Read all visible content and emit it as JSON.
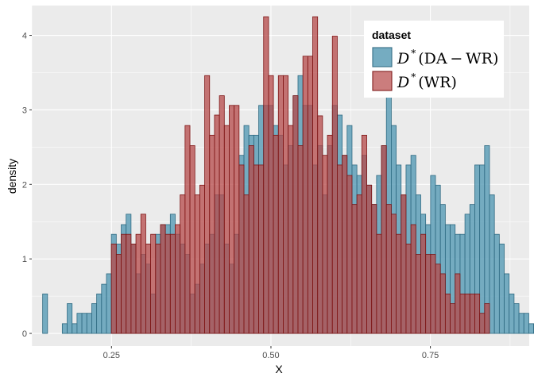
{
  "chart_data": {
    "type": "histogram",
    "xlabel": "X",
    "ylabel": "density",
    "xlim": [
      0.125,
      0.905
    ],
    "ylim": [
      -0.17,
      4.4
    ],
    "x_ticks": [
      0.25,
      0.5,
      0.75
    ],
    "x_tick_labels": [
      "0.25",
      "0.50",
      "0.75"
    ],
    "y_ticks": [
      0,
      1,
      2,
      3,
      4
    ],
    "y_tick_labels": [
      "0",
      "1",
      "2",
      "3",
      "4"
    ],
    "x_minor_ticks": [
      0.125,
      0.375,
      0.625,
      0.875
    ],
    "y_minor_ticks": [
      0.5,
      1.5,
      2.5,
      3.5
    ],
    "bin_start": 0.142,
    "bin_width": 0.0077,
    "legend": {
      "title": "dataset",
      "position": "top-right",
      "entries": [
        {
          "prefix": "D",
          "superscript": "*",
          "text": "(DA − WR)",
          "fill": "#5fa0b9",
          "stroke": "#2f6a82"
        },
        {
          "prefix": "D",
          "superscript": "*",
          "text": "(WR)",
          "fill": "#bd5656",
          "stroke": "#7d1414"
        }
      ]
    },
    "series": [
      {
        "name": "D*(DA - WR)",
        "fill": "#5fa0b9",
        "fill_opacity": 0.85,
        "stroke": "#2f6a82",
        "values": [
          0.53,
          0,
          0,
          0,
          0.13,
          0.4,
          0.13,
          0.27,
          0.27,
          0.27,
          0.4,
          0.53,
          0.66,
          0.8,
          1.33,
          1.2,
          1.46,
          1.6,
          1.2,
          0.8,
          1.06,
          0.93,
          0.53,
          1.33,
          1.46,
          1.46,
          1.6,
          1.33,
          1.2,
          1.06,
          0.53,
          0.66,
          0.93,
          1.2,
          1.33,
          1.86,
          1.86,
          1.2,
          0.93,
          1.33,
          2.39,
          2.79,
          2.66,
          2.66,
          3.06,
          3.06,
          3.06,
          2.79,
          2.66,
          2.26,
          2.52,
          3.19,
          3.46,
          3.06,
          3.06,
          2.26,
          2.52,
          1.86,
          2.52,
          3.06,
          2.93,
          2.39,
          2.79,
          2.26,
          2.12,
          2.39,
          1.99,
          1.73,
          2.12,
          2.52,
          3.19,
          2.79,
          2.26,
          1.86,
          2.26,
          2.39,
          1.86,
          1.6,
          1.46,
          2.12,
          1.99,
          1.73,
          1.46,
          1.46,
          1.33,
          1.33,
          1.6,
          1.73,
          2.26,
          2.26,
          2.52,
          1.86,
          1.33,
          1.2,
          0.8,
          0.53,
          0.4,
          0.27,
          0.27,
          0.13,
          0.13,
          0.27,
          0.27,
          0.4,
          0.27,
          0.27,
          0.53,
          0.53,
          0.13,
          0.13,
          0.13,
          0.13
        ]
      },
      {
        "name": "D*(WR)",
        "fill": "#b54a4a",
        "fill_opacity": 0.75,
        "stroke": "#7d1414",
        "values": [
          0,
          0,
          0,
          0,
          0,
          0,
          0,
          0,
          0,
          0,
          0,
          0,
          0,
          0,
          1.2,
          1.06,
          1.33,
          1.33,
          1.2,
          1.33,
          1.6,
          1.2,
          1.33,
          1.2,
          1.46,
          1.33,
          1.33,
          1.46,
          1.86,
          2.79,
          2.52,
          1.86,
          1.99,
          3.46,
          2.66,
          2.93,
          3.19,
          2.79,
          3.06,
          3.06,
          2.26,
          1.86,
          2.52,
          2.26,
          2.26,
          4.25,
          3.46,
          2.66,
          3.46,
          3.46,
          2.79,
          3.19,
          2.52,
          3.72,
          3.72,
          4.25,
          2.92,
          2.39,
          2.66,
          3.99,
          2.26,
          2.39,
          2.12,
          1.73,
          1.86,
          2.66,
          1.99,
          1.73,
          1.33,
          2.52,
          1.73,
          1.6,
          1.33,
          1.86,
          1.2,
          1.46,
          1.06,
          1.33,
          1.06,
          1.06,
          0.93,
          0.8,
          0.53,
          0.4,
          0.8,
          0.53,
          0.53,
          0.53,
          0.53,
          0.27,
          0.4,
          0,
          0,
          0,
          0,
          0,
          0,
          0,
          0,
          0,
          0,
          0,
          0,
          0,
          0,
          0,
          0,
          0,
          0,
          0,
          0,
          0
        ]
      }
    ]
  }
}
